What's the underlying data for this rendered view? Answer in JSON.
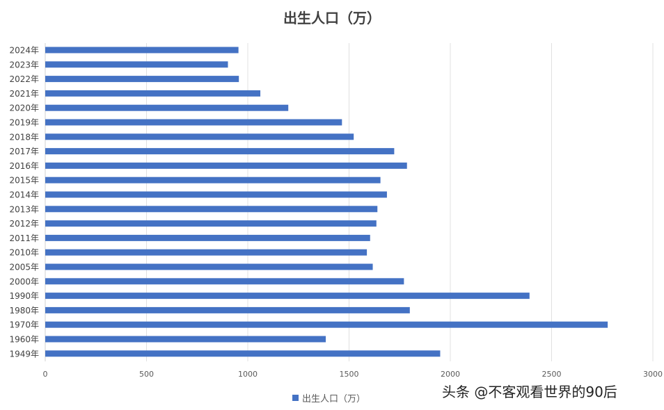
{
  "chart_data": {
    "type": "bar",
    "orientation": "horizontal",
    "title": "出生人口（万）",
    "xlabel": "",
    "ylabel": "",
    "xlim": [
      0,
      3000
    ],
    "xticks": [
      0,
      500,
      1000,
      1500,
      2000,
      2500,
      3000
    ],
    "grid": true,
    "legend": {
      "position": "bottom",
      "entries": [
        "出生人口（万）"
      ]
    },
    "categories": [
      "2024年",
      "2023年",
      "2022年",
      "2021年",
      "2020年",
      "2019年",
      "2018年",
      "2017年",
      "2016年",
      "2015年",
      "2014年",
      "2013年",
      "2012年",
      "2011年",
      "2010年",
      "2005年",
      "2000年",
      "1990年",
      "1980年",
      "1970年",
      "1960年",
      "1949年"
    ],
    "series": [
      {
        "name": "出生人口（万）",
        "color": "#4472c4",
        "values": [
          954,
          902,
          956,
          1062,
          1200,
          1465,
          1523,
          1723,
          1786,
          1655,
          1687,
          1640,
          1635,
          1604,
          1588,
          1617,
          1771,
          2391,
          1800,
          2777,
          1385,
          1950
        ]
      }
    ]
  },
  "watermark": "头条 @不客观看世界的90后"
}
